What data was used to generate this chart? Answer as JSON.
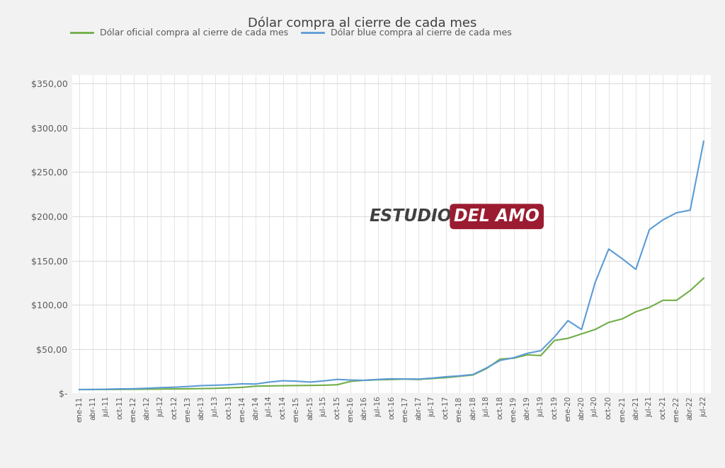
{
  "title": "Dólar compra al cierre de cada mes",
  "legend_oficial": "Dólar oficial compra al cierre de cada mes",
  "legend_blue": "Dólar blue compra al cierre de cada mes",
  "color_oficial": "#70ad47",
  "color_blue": "#5b9bd5",
  "background_color": "#f2f2f2",
  "plot_background": "#ffffff",
  "ylim": [
    0,
    360
  ],
  "yticks": [
    0,
    50,
    100,
    150,
    200,
    250,
    300,
    350
  ],
  "ytick_labels": [
    "$-",
    "$50,00",
    "$100,00",
    "$150,00",
    "$200,00",
    "$250,00",
    "$300,00",
    "$350,00"
  ],
  "watermark_text1": "ESTUDIO",
  "watermark_text2": "DEL AMO",
  "watermark_color1": "#404040",
  "watermark_color2": "#ffffff",
  "watermark_bg": "#9b1c31",
  "dates": [
    "ene-11",
    "abr-11",
    "jul-11",
    "oct-11",
    "ene-12",
    "abr-12",
    "jul-12",
    "oct-12",
    "ene-13",
    "abr-13",
    "jul-13",
    "oct-13",
    "ene-14",
    "abr-14",
    "jul-14",
    "oct-14",
    "ene-15",
    "abr-15",
    "jul-15",
    "oct-15",
    "ene-16",
    "abr-16",
    "jul-16",
    "oct-16",
    "ene-17",
    "abr-17",
    "jul-17",
    "oct-17",
    "ene-18",
    "abr-18",
    "jul-18",
    "oct-18",
    "ene-19",
    "abr-19",
    "jul-19",
    "oct-19",
    "ene-20",
    "abr-20",
    "jul-20",
    "oct-20",
    "ene-21",
    "abr-21",
    "jul-21",
    "oct-21",
    "ene-22",
    "abr-22",
    "jul-22"
  ],
  "oficial": [
    4.0,
    4.05,
    4.13,
    4.22,
    4.35,
    4.48,
    4.6,
    4.75,
    4.92,
    5.12,
    5.38,
    5.96,
    6.52,
    7.87,
    8.13,
    8.39,
    8.56,
    8.72,
    8.93,
    9.47,
    13.3,
    14.5,
    15.1,
    15.4,
    15.9,
    15.5,
    16.5,
    17.5,
    19.0,
    20.5,
    27.8,
    38.5,
    39.5,
    43.3,
    42.5,
    59.5,
    62.0,
    67.0,
    72.0,
    80.0,
    84.0,
    92.0,
    97.0,
    105.0,
    105.0,
    116.0,
    130.0
  ],
  "blue": [
    4.1,
    4.2,
    4.35,
    4.8,
    4.95,
    5.5,
    6.2,
    6.7,
    7.5,
    8.5,
    8.9,
    9.5,
    10.5,
    10.3,
    12.5,
    14.0,
    13.5,
    12.5,
    13.8,
    15.5,
    14.8,
    14.5,
    15.5,
    16.2,
    16.0,
    15.8,
    17.0,
    18.5,
    19.5,
    21.0,
    28.5,
    37.0,
    40.0,
    45.0,
    48.0,
    63.5,
    82.0,
    72.0,
    125.0,
    163.0,
    152.0,
    140.0,
    185.0,
    196.0,
    204.0,
    207.0,
    285.0
  ]
}
